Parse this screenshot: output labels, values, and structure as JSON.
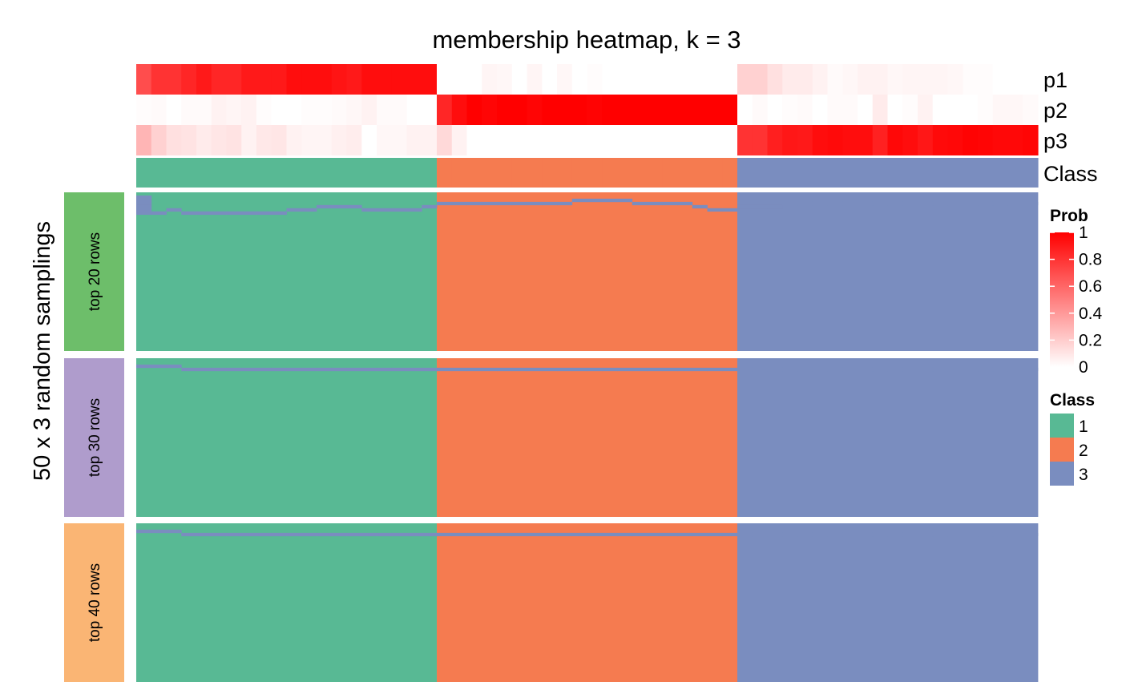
{
  "chart_data": {
    "type": "heatmap",
    "title": "membership heatmap, k = 3",
    "ylabel": "50 x 3 random samplings",
    "n_samples": 60,
    "annotation_rows": [
      "p1",
      "p2",
      "p3",
      "Class"
    ],
    "sample_class": [
      1,
      1,
      1,
      1,
      1,
      1,
      1,
      1,
      1,
      1,
      1,
      1,
      1,
      1,
      1,
      1,
      1,
      1,
      1,
      1,
      2,
      2,
      2,
      2,
      2,
      2,
      2,
      2,
      2,
      2,
      2,
      2,
      2,
      2,
      2,
      2,
      2,
      2,
      2,
      2,
      3,
      3,
      3,
      3,
      3,
      3,
      3,
      3,
      3,
      3,
      3,
      3,
      3,
      3,
      3,
      3,
      3,
      3,
      3,
      3
    ],
    "p1": [
      0.7,
      0.8,
      0.8,
      0.85,
      0.9,
      0.85,
      0.85,
      0.9,
      0.9,
      0.9,
      0.95,
      0.95,
      0.95,
      0.92,
      0.9,
      0.95,
      0.95,
      0.95,
      0.95,
      0.95,
      0.0,
      0.0,
      0.0,
      0.04,
      0.03,
      0.0,
      0.04,
      0.0,
      0.03,
      0.0,
      0.01,
      0.0,
      0.0,
      0.0,
      0.0,
      0.0,
      0.0,
      0.0,
      0.0,
      0.0,
      0.18,
      0.18,
      0.12,
      0.08,
      0.08,
      0.05,
      0.02,
      0.03,
      0.05,
      0.05,
      0.03,
      0.04,
      0.04,
      0.04,
      0.03,
      0.01,
      0.01,
      0.0,
      0.0,
      0.0
    ],
    "p2": [
      0.01,
      0.02,
      0.0,
      0.02,
      0.02,
      0.05,
      0.04,
      0.05,
      0.01,
      0.0,
      0.0,
      0.01,
      0.01,
      0.02,
      0.03,
      0.05,
      0.02,
      0.02,
      0.0,
      0.0,
      0.85,
      0.95,
      1.0,
      0.98,
      1.0,
      1.0,
      0.98,
      1.0,
      1.0,
      1.0,
      0.99,
      1.0,
      1.0,
      1.0,
      1.0,
      1.0,
      1.0,
      1.0,
      1.0,
      1.0,
      0.0,
      0.02,
      0.0,
      0.01,
      0.02,
      0.0,
      0.02,
      0.02,
      0.0,
      0.08,
      0.0,
      0.01,
      0.05,
      0.0,
      0.0,
      0.0,
      0.01,
      0.03,
      0.03,
      0.02
    ],
    "p3": [
      0.29,
      0.18,
      0.12,
      0.11,
      0.08,
      0.1,
      0.11,
      0.05,
      0.09,
      0.1,
      0.05,
      0.04,
      0.04,
      0.06,
      0.07,
      0.0,
      0.03,
      0.03,
      0.05,
      0.05,
      0.15,
      0.05,
      0.0,
      0.0,
      0.0,
      0.0,
      0.0,
      0.0,
      0.0,
      0.0,
      0.0,
      0.0,
      0.0,
      0.0,
      0.0,
      0.0,
      0.0,
      0.0,
      0.0,
      0.0,
      0.8,
      0.8,
      0.88,
      0.91,
      0.9,
      0.95,
      0.96,
      0.95,
      0.95,
      0.87,
      0.97,
      0.95,
      0.91,
      0.96,
      0.97,
      0.99,
      0.98,
      0.97,
      0.97,
      0.98
    ],
    "groups": [
      {
        "label": "top 20 rows",
        "rows": 50,
        "color": "#6DBE6A"
      },
      {
        "label": "top 30 rows",
        "rows": 50,
        "color": "#AF9CCC"
      },
      {
        "label": "top 40 rows",
        "rows": 50,
        "color": "#FAB574"
      }
    ],
    "class_colors": {
      "1": "#58B994",
      "2": "#F57B50",
      "3": "#7A8DBF"
    },
    "prob_colors": {
      "low": "#FFFFFF",
      "high": "#FF0000"
    },
    "deviations": [
      [
        [
          0,
          1,
          3
        ],
        [
          0,
          2,
          3
        ],
        [
          0,
          3,
          3
        ],
        [
          0,
          4,
          3
        ],
        [
          0,
          5,
          3
        ],
        [
          0,
          6,
          3
        ],
        [
          1,
          6,
          3
        ],
        [
          2,
          5,
          3
        ],
        [
          3,
          6,
          3
        ],
        [
          4,
          6,
          3
        ],
        [
          5,
          6,
          3
        ],
        [
          6,
          6,
          3
        ],
        [
          7,
          6,
          3
        ],
        [
          8,
          6,
          3
        ],
        [
          9,
          6,
          3
        ],
        [
          10,
          5,
          3
        ],
        [
          11,
          5,
          3
        ],
        [
          12,
          4,
          3
        ],
        [
          13,
          4,
          3
        ],
        [
          14,
          4,
          3
        ],
        [
          15,
          5,
          3
        ],
        [
          16,
          5,
          3
        ],
        [
          17,
          5,
          3
        ],
        [
          18,
          5,
          3
        ],
        [
          19,
          4,
          3
        ],
        [
          20,
          3,
          3
        ],
        [
          21,
          3,
          3
        ],
        [
          22,
          3,
          3
        ],
        [
          23,
          3,
          3
        ],
        [
          24,
          3,
          3
        ],
        [
          25,
          3,
          3
        ],
        [
          26,
          3,
          3
        ],
        [
          27,
          3,
          3
        ],
        [
          28,
          3,
          3
        ],
        [
          29,
          2,
          3
        ],
        [
          30,
          2,
          3
        ],
        [
          31,
          2,
          3
        ],
        [
          32,
          2,
          3
        ],
        [
          33,
          3,
          3
        ],
        [
          34,
          3,
          3
        ],
        [
          35,
          3,
          3
        ],
        [
          36,
          3,
          3
        ],
        [
          37,
          4,
          3
        ],
        [
          38,
          5,
          3
        ],
        [
          39,
          5,
          3
        ],
        [
          40,
          4,
          3
        ],
        [
          41,
          4,
          3
        ],
        [
          42,
          4,
          3
        ],
        [
          43,
          3,
          3
        ],
        [
          44,
          3,
          3
        ],
        [
          45,
          3,
          3
        ],
        [
          46,
          3,
          3
        ],
        [
          47,
          3,
          3
        ],
        [
          48,
          3,
          3
        ],
        [
          49,
          3,
          3
        ],
        [
          50,
          3,
          3
        ],
        [
          51,
          3,
          3
        ],
        [
          52,
          3,
          3
        ],
        [
          53,
          3,
          3
        ],
        [
          54,
          3,
          3
        ],
        [
          55,
          3,
          3
        ],
        [
          56,
          3,
          3
        ],
        [
          57,
          3,
          3
        ],
        [
          58,
          3,
          3
        ],
        [
          59,
          3,
          3
        ]
      ],
      [
        [
          0,
          2,
          3
        ],
        [
          1,
          2,
          3
        ],
        [
          2,
          2,
          3
        ],
        [
          3,
          3,
          3
        ],
        [
          4,
          3,
          3
        ],
        [
          5,
          3,
          3
        ],
        [
          6,
          3,
          3
        ],
        [
          7,
          3,
          3
        ],
        [
          8,
          3,
          3
        ],
        [
          9,
          3,
          3
        ],
        [
          10,
          3,
          3
        ],
        [
          11,
          3,
          3
        ],
        [
          12,
          3,
          3
        ],
        [
          13,
          3,
          3
        ],
        [
          14,
          3,
          3
        ],
        [
          15,
          3,
          3
        ],
        [
          16,
          3,
          3
        ],
        [
          17,
          3,
          3
        ],
        [
          18,
          3,
          3
        ],
        [
          19,
          3,
          3
        ],
        [
          20,
          3,
          3
        ],
        [
          21,
          3,
          3
        ],
        [
          22,
          3,
          3
        ],
        [
          23,
          3,
          3
        ],
        [
          24,
          3,
          3
        ],
        [
          25,
          3,
          3
        ],
        [
          26,
          3,
          3
        ],
        [
          27,
          3,
          3
        ],
        [
          28,
          3,
          3
        ],
        [
          29,
          3,
          3
        ],
        [
          30,
          3,
          3
        ],
        [
          31,
          3,
          3
        ],
        [
          32,
          3,
          3
        ],
        [
          33,
          3,
          3
        ],
        [
          34,
          3,
          3
        ],
        [
          35,
          3,
          3
        ],
        [
          36,
          3,
          3
        ],
        [
          37,
          3,
          3
        ],
        [
          38,
          3,
          3
        ],
        [
          39,
          3,
          3
        ],
        [
          40,
          3,
          3
        ],
        [
          41,
          3,
          3
        ],
        [
          42,
          3,
          3
        ],
        [
          43,
          3,
          3
        ],
        [
          44,
          3,
          3
        ],
        [
          45,
          3,
          3
        ],
        [
          46,
          3,
          3
        ],
        [
          47,
          3,
          3
        ],
        [
          48,
          3,
          3
        ],
        [
          49,
          3,
          3
        ],
        [
          50,
          3,
          3
        ],
        [
          51,
          3,
          3
        ],
        [
          52,
          3,
          3
        ],
        [
          53,
          3,
          3
        ],
        [
          54,
          3,
          3
        ],
        [
          55,
          3,
          3
        ],
        [
          56,
          3,
          3
        ],
        [
          57,
          3,
          3
        ],
        [
          58,
          3,
          3
        ],
        [
          59,
          3,
          3
        ]
      ],
      [
        [
          0,
          2,
          3
        ],
        [
          1,
          2,
          3
        ],
        [
          2,
          2,
          3
        ],
        [
          3,
          3,
          3
        ],
        [
          4,
          3,
          3
        ],
        [
          5,
          3,
          3
        ],
        [
          6,
          3,
          3
        ],
        [
          7,
          3,
          3
        ],
        [
          8,
          3,
          3
        ],
        [
          9,
          3,
          3
        ],
        [
          10,
          3,
          3
        ],
        [
          11,
          3,
          3
        ],
        [
          12,
          3,
          3
        ],
        [
          13,
          3,
          3
        ],
        [
          14,
          3,
          3
        ],
        [
          15,
          3,
          3
        ],
        [
          16,
          3,
          3
        ],
        [
          17,
          3,
          3
        ],
        [
          18,
          3,
          3
        ],
        [
          19,
          3,
          3
        ],
        [
          20,
          3,
          3
        ],
        [
          21,
          3,
          3
        ],
        [
          22,
          3,
          3
        ],
        [
          23,
          3,
          3
        ],
        [
          24,
          3,
          3
        ],
        [
          25,
          3,
          3
        ],
        [
          26,
          3,
          3
        ],
        [
          27,
          3,
          3
        ],
        [
          28,
          3,
          3
        ],
        [
          29,
          3,
          3
        ],
        [
          30,
          3,
          3
        ],
        [
          31,
          3,
          3
        ],
        [
          32,
          3,
          3
        ],
        [
          33,
          3,
          3
        ],
        [
          34,
          3,
          3
        ],
        [
          35,
          3,
          3
        ],
        [
          36,
          3,
          3
        ],
        [
          37,
          3,
          3
        ],
        [
          38,
          3,
          3
        ],
        [
          39,
          3,
          3
        ],
        [
          40,
          3,
          3
        ],
        [
          41,
          3,
          3
        ],
        [
          42,
          3,
          3
        ],
        [
          43,
          3,
          3
        ],
        [
          44,
          3,
          3
        ],
        [
          45,
          3,
          3
        ],
        [
          46,
          3,
          3
        ],
        [
          47,
          3,
          3
        ],
        [
          48,
          3,
          3
        ],
        [
          49,
          3,
          3
        ],
        [
          50,
          3,
          3
        ],
        [
          51,
          3,
          3
        ],
        [
          52,
          3,
          3
        ],
        [
          53,
          3,
          3
        ],
        [
          54,
          3,
          3
        ],
        [
          55,
          3,
          3
        ],
        [
          56,
          3,
          3
        ],
        [
          57,
          3,
          3
        ],
        [
          58,
          3,
          3
        ],
        [
          59,
          3,
          3
        ]
      ]
    ],
    "legend": {
      "prob_title": "Prob",
      "prob_ticks": [
        "1",
        "0.8",
        "0.6",
        "0.4",
        "0.2",
        "0"
      ],
      "class_title": "Class",
      "class_labels": [
        "1",
        "2",
        "3"
      ],
      "placement": "right"
    }
  }
}
